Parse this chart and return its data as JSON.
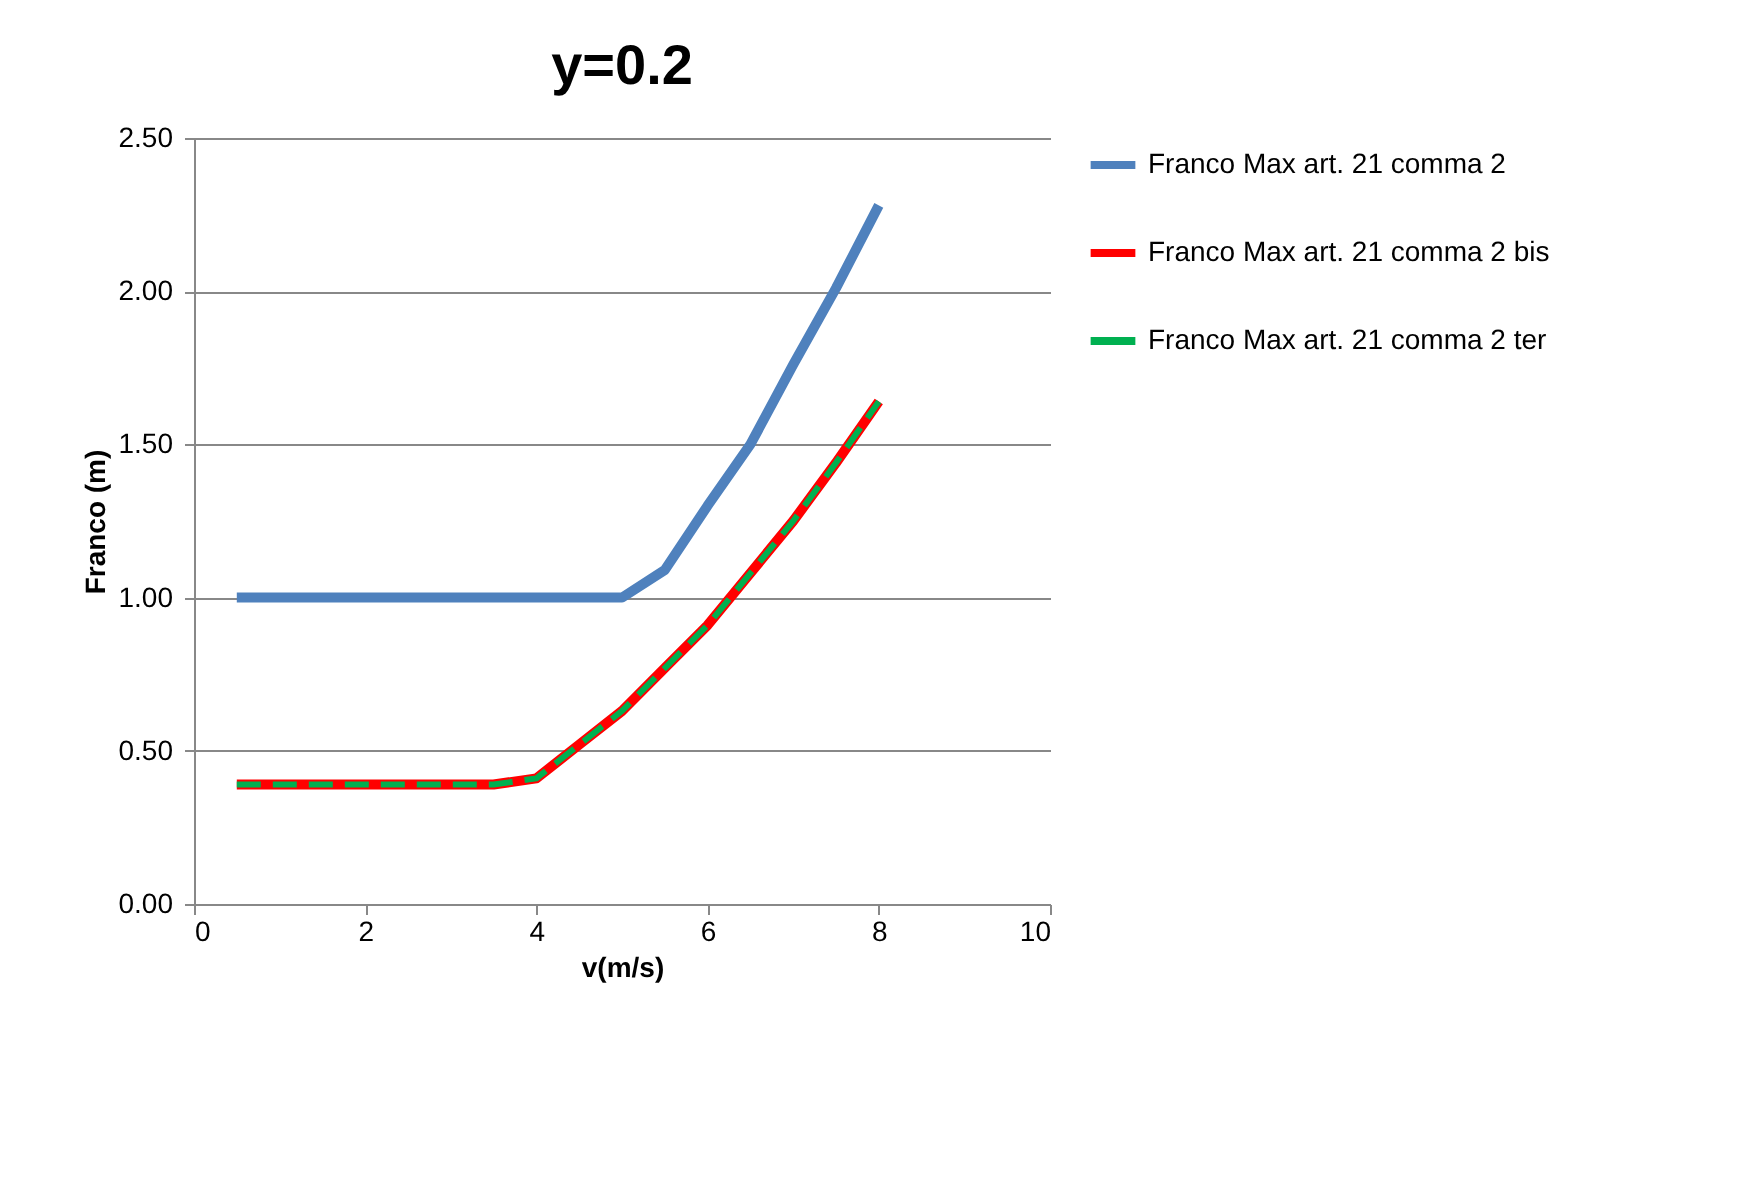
{
  "chart_data": {
    "type": "line",
    "title": "y=0.2",
    "xlabel": "v(m/s)",
    "ylabel": "Franco (m)",
    "x": [
      0.5,
      1,
      1.5,
      2,
      2.5,
      3,
      3.5,
      4,
      4.5,
      5,
      5.5,
      6,
      6.5,
      7,
      7.5,
      8
    ],
    "series": [
      {
        "name": "Franco Max art. 21 comma 2",
        "color": "#4f81bd",
        "line_style": "solid",
        "values": [
          1.0,
          1.0,
          1.0,
          1.0,
          1.0,
          1.0,
          1.0,
          1.0,
          1.0,
          1.0,
          1.09,
          1.3,
          1.5,
          1.76,
          2.01,
          2.28
        ]
      },
      {
        "name": "Franco Max art. 21 comma 2 bis",
        "color": "#ff0000",
        "line_style": "solid",
        "values": [
          0.39,
          0.39,
          0.39,
          0.39,
          0.39,
          0.39,
          0.39,
          0.41,
          0.52,
          0.63,
          0.77,
          0.91,
          1.08,
          1.25,
          1.44,
          1.64
        ]
      },
      {
        "name": "Franco Max art. 21 comma 2 ter",
        "color": "#00b050",
        "line_style": "dashed",
        "values": [
          0.39,
          0.39,
          0.39,
          0.39,
          0.39,
          0.39,
          0.39,
          0.41,
          0.52,
          0.63,
          0.77,
          0.91,
          1.08,
          1.25,
          1.44,
          1.64
        ]
      }
    ],
    "xlim": [
      0,
      10
    ],
    "xticks": [
      0,
      2,
      4,
      6,
      8,
      10
    ],
    "ylim": [
      0,
      2.5
    ],
    "yticks": [
      {
        "value": 0,
        "label": "0.00"
      },
      {
        "value": 0.5,
        "label": "0.50"
      },
      {
        "value": 1,
        "label": "1.00"
      },
      {
        "value": 1.5,
        "label": "1.50"
      },
      {
        "value": 2,
        "label": "2.00"
      },
      {
        "value": 2.5,
        "label": "2.50"
      }
    ],
    "grid": "y",
    "legend": "right",
    "marker": "none"
  }
}
